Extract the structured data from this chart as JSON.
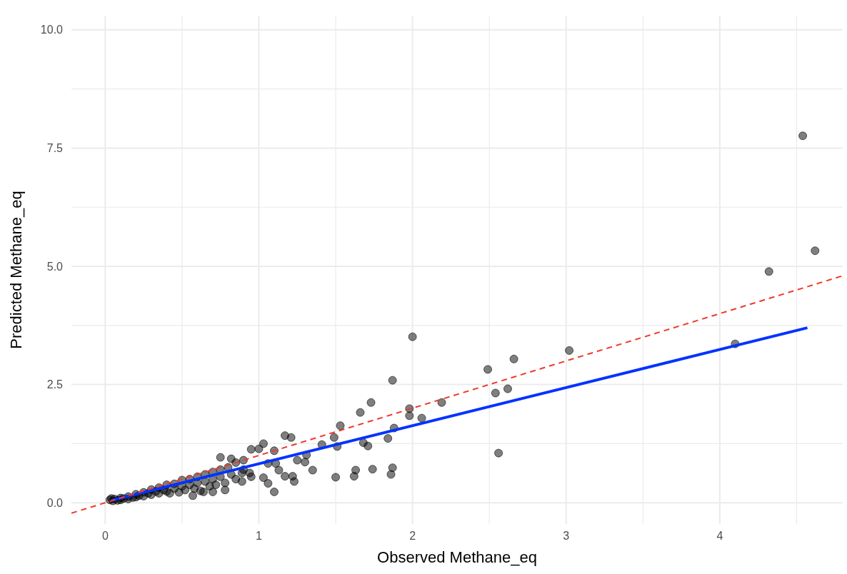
{
  "chart_data": {
    "type": "scatter",
    "xlabel": "Observed Methane_eq",
    "ylabel": "Predicted Methane_eq",
    "xlim": [
      -0.22,
      4.8
    ],
    "ylim": [
      -0.45,
      10.3
    ],
    "xticks": [
      0,
      {
        "value": 0.5,
        "label": null
      },
      1,
      {
        "value": 1.5,
        "label": null
      },
      2,
      {
        "value": 2.5,
        "label": null
      },
      3,
      {
        "value": 3.5,
        "label": null
      },
      4,
      {
        "value": 4.5,
        "label": null
      }
    ],
    "yticks": [
      {
        "value": 0,
        "label": "0.0"
      },
      {
        "value": 1.25,
        "label": null
      },
      {
        "value": 2.5,
        "label": "2.5"
      },
      {
        "value": 3.75,
        "label": null
      },
      {
        "value": 5,
        "label": "5.0"
      },
      {
        "value": 6.25,
        "label": null
      },
      {
        "value": 7.5,
        "label": "7.5"
      },
      {
        "value": 8.75,
        "label": null
      },
      {
        "value": 10,
        "label": "10.0"
      }
    ],
    "grid": true,
    "series": [
      {
        "color": "#000000",
        "marker": "circle",
        "x": [
          0.03,
          0.04,
          0.05,
          0.06,
          0.08,
          0.1,
          0.1,
          0.12,
          0.15,
          0.15,
          0.18,
          0.2,
          0.2,
          0.22,
          0.25,
          0.25,
          0.28,
          0.3,
          0.3,
          0.33,
          0.35,
          0.35,
          0.38,
          0.4,
          0.4,
          0.42,
          0.45,
          0.45,
          0.48,
          0.5,
          0.5,
          0.52,
          0.55,
          0.55,
          0.58,
          0.6,
          0.6,
          0.62,
          0.65,
          0.65,
          0.68,
          0.7,
          0.7,
          0.72,
          0.75,
          0.75,
          0.78,
          0.8,
          0.82,
          0.85,
          0.85,
          0.9,
          0.9,
          0.95,
          0.75,
          1.17,
          1.21,
          1.03,
          0.95,
          1.1,
          1.0,
          0.82,
          0.89,
          0.94,
          0.89,
          0.78,
          0.7,
          0.57,
          0.64,
          1.13,
          1.17,
          1.22,
          1.23,
          1.1,
          1.06,
          1.03,
          1.11,
          1.06,
          1.53,
          1.49,
          1.41,
          1.31,
          1.25,
          1.3,
          1.35,
          1.5,
          1.62,
          1.63,
          1.74,
          1.87,
          1.86,
          1.84,
          1.88,
          1.68,
          1.71,
          1.73,
          1.66,
          1.87,
          1.51,
          1.98,
          1.98,
          2.0,
          2.06,
          2.19,
          2.49,
          2.54,
          2.62,
          2.66,
          2.56,
          3.02,
          4.1,
          4.32,
          4.54,
          4.62
        ],
        "values": [
          0.06,
          0.09,
          0.04,
          0.08,
          0.05,
          0.1,
          0.06,
          0.09,
          0.13,
          0.08,
          0.11,
          0.18,
          0.12,
          0.15,
          0.22,
          0.14,
          0.2,
          0.28,
          0.17,
          0.24,
          0.32,
          0.2,
          0.27,
          0.38,
          0.24,
          0.2,
          0.4,
          0.3,
          0.22,
          0.48,
          0.35,
          0.27,
          0.5,
          0.38,
          0.3,
          0.55,
          0.42,
          0.25,
          0.6,
          0.45,
          0.35,
          0.65,
          0.5,
          0.38,
          0.7,
          0.55,
          0.42,
          0.75,
          0.6,
          0.85,
          0.5,
          0.9,
          0.7,
          0.55,
          0.96,
          1.42,
          1.38,
          1.25,
          1.13,
          1.1,
          1.14,
          0.93,
          0.45,
          0.63,
          0.63,
          0.27,
          0.23,
          0.15,
          0.23,
          0.69,
          0.56,
          0.56,
          0.45,
          0.23,
          0.41,
          0.53,
          0.83,
          0.83,
          1.63,
          1.38,
          1.23,
          1.01,
          0.9,
          0.86,
          0.69,
          0.54,
          0.56,
          0.69,
          0.71,
          0.74,
          0.6,
          1.36,
          1.58,
          1.27,
          1.2,
          2.12,
          1.91,
          2.59,
          1.19,
          1.84,
          1.99,
          3.51,
          1.79,
          2.12,
          2.82,
          2.32,
          2.41,
          3.04,
          1.05,
          3.22,
          3.36,
          4.89,
          7.76,
          5.33
        ]
      },
      {
        "type": "line",
        "color": "#0033ff",
        "marker": "none",
        "line_style": "solid",
        "x": [
          0.04,
          4.57
        ],
        "values": [
          0.05,
          3.7
        ]
      },
      {
        "type": "line",
        "color": "#ee3a2c",
        "marker": "none",
        "line_style": "dashed",
        "x": [
          -0.22,
          4.8
        ],
        "values": [
          -0.22,
          4.8
        ]
      }
    ]
  }
}
